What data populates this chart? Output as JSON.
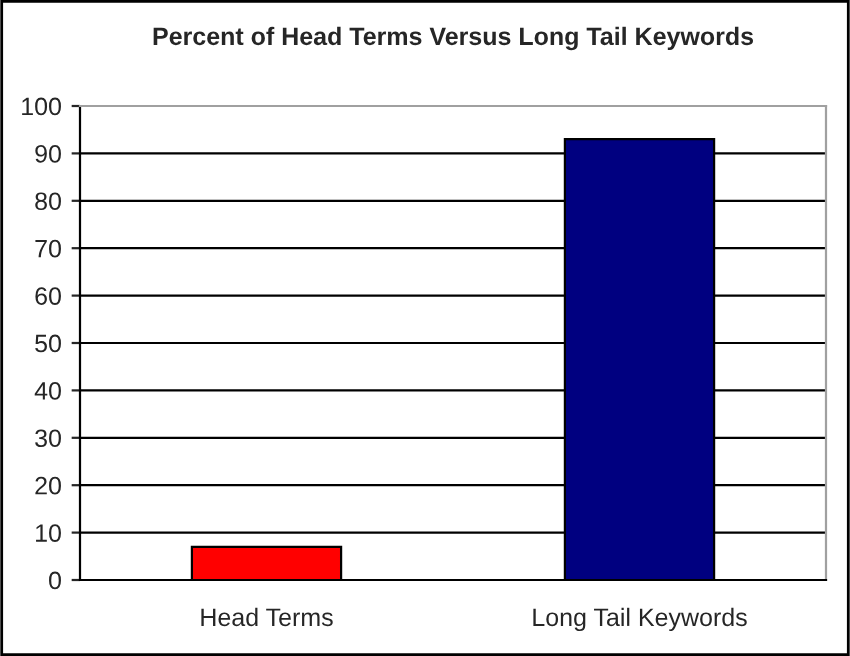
{
  "chart_data": {
    "type": "bar",
    "title": "Percent of Head Terms Versus Long Tail Keywords",
    "categories": [
      "Head Terms",
      "Long Tail Keywords"
    ],
    "values": [
      7,
      93
    ],
    "colors": [
      "#ff0000",
      "#000080"
    ],
    "ylim": [
      0,
      100
    ],
    "yticks": [
      0,
      10,
      20,
      30,
      40,
      50,
      60,
      70,
      80,
      90,
      100
    ],
    "grid": "y",
    "legend": false
  }
}
